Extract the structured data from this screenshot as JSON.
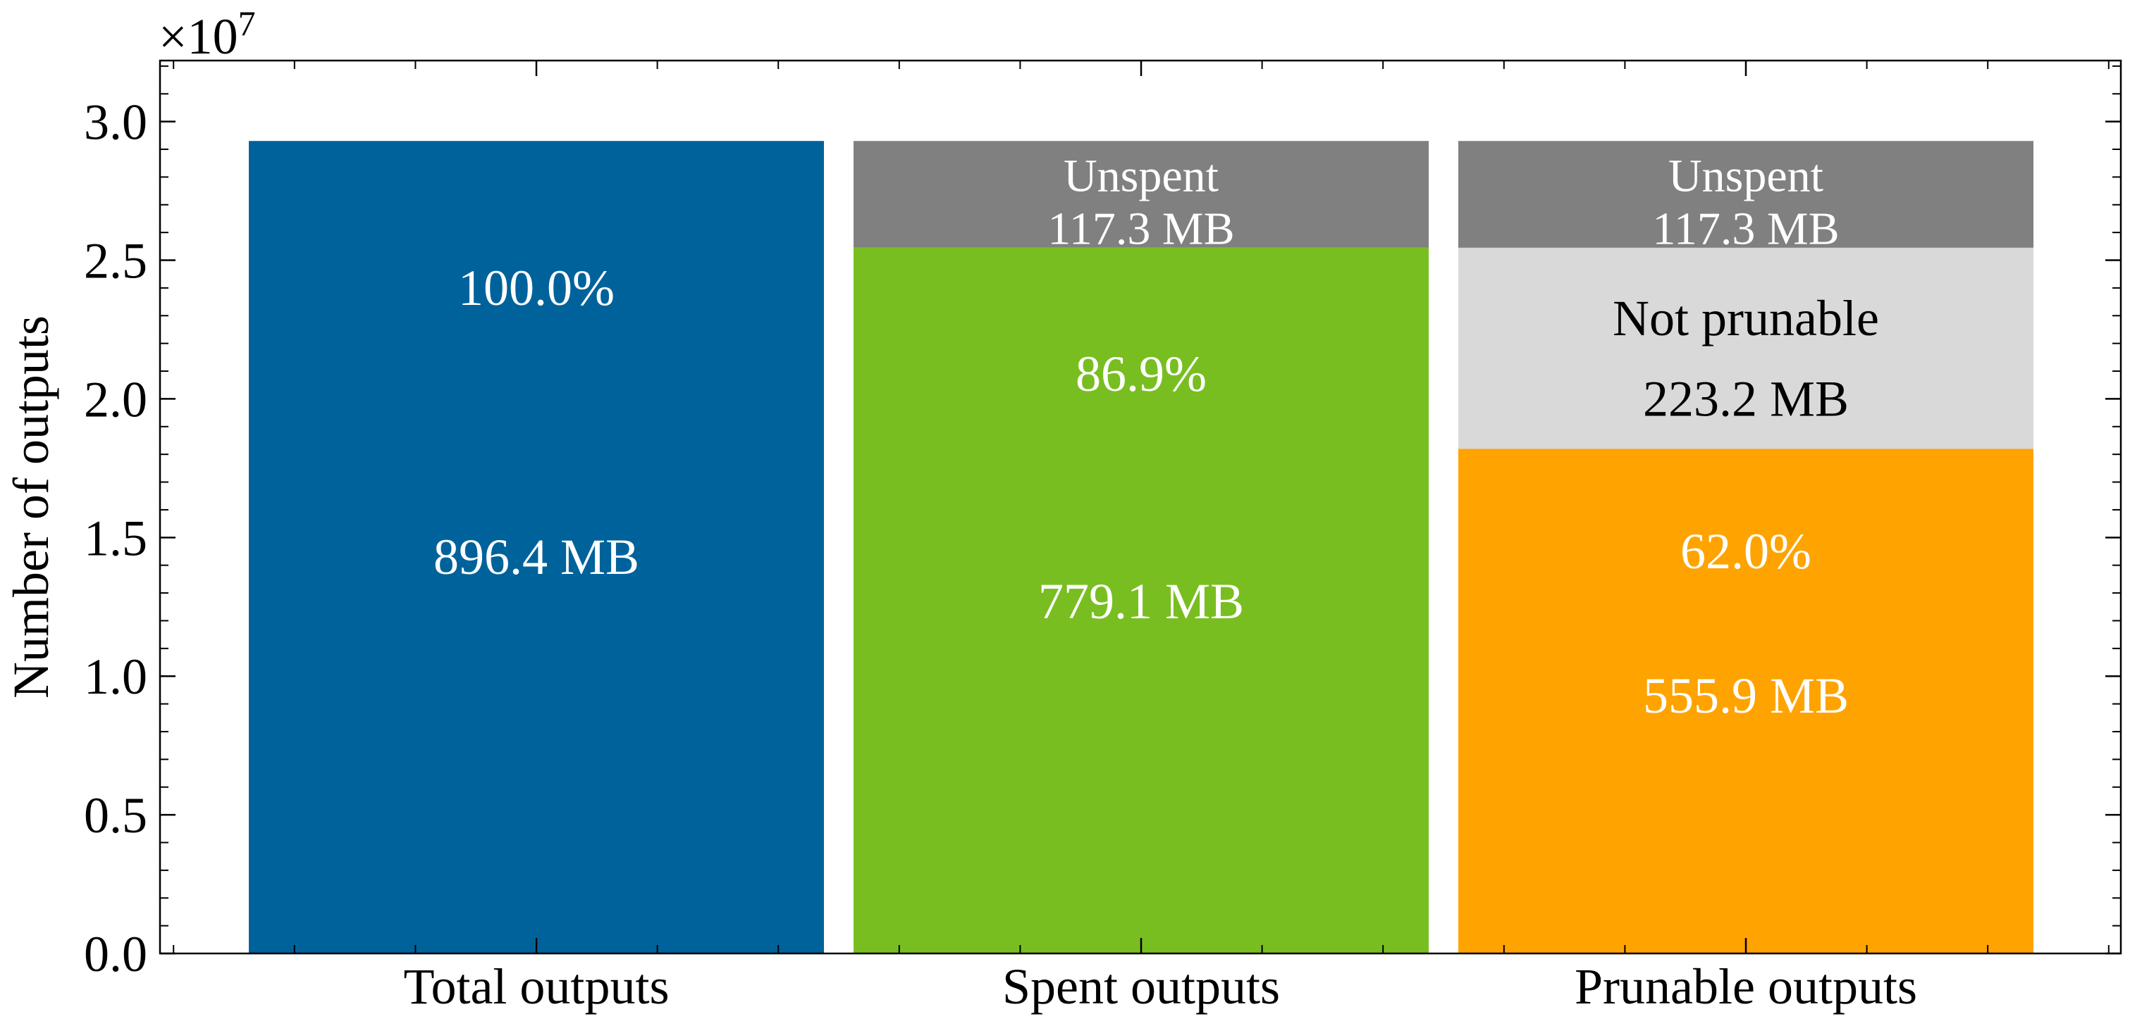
{
  "chart_data": {
    "type": "bar",
    "stacked": true,
    "ylabel": "Number of outputs",
    "y_multiplier_label": "×10",
    "y_multiplier_exponent": "7",
    "ylim": [
      0,
      3.22
    ],
    "yticks": [
      "0.0",
      "0.5",
      "1.0",
      "1.5",
      "2.0",
      "2.5",
      "3.0"
    ],
    "ytick_values": [
      0.0,
      0.5,
      1.0,
      1.5,
      2.0,
      2.5,
      3.0
    ],
    "grid": false,
    "bars": [
      {
        "category": "Total outputs",
        "segments": [
          {
            "name": "",
            "value": 2.93,
            "color": "#00629b",
            "text_color": "#ffffff",
            "labels": [
              "100.0%",
              "896.4 MB"
            ],
            "label_y": [
              2.4,
              1.43
            ]
          }
        ]
      },
      {
        "category": "Spent outputs",
        "segments": [
          {
            "name": "",
            "value": 2.545,
            "color": "#78be20",
            "text_color": "#ffffff",
            "labels": [
              "86.9%",
              "779.1 MB"
            ],
            "label_y": [
              2.09,
              1.27
            ]
          },
          {
            "name": "Unspent",
            "value": 0.385,
            "color": "#808080",
            "text_color": "#ffffff",
            "labels": [
              "Unspent",
              "117.3 MB"
            ],
            "label_y": [
              2.81,
              2.62
            ],
            "small": true
          }
        ]
      },
      {
        "category": "Prunable outputs",
        "segments": [
          {
            "name": "",
            "value": 1.82,
            "color": "#ffa300",
            "text_color": "#ffffff",
            "labels": [
              "62.0%",
              "555.9 MB"
            ],
            "label_y": [
              1.45,
              0.93
            ]
          },
          {
            "name": "Not prunable",
            "value": 0.725,
            "color": "#d9d9d9",
            "text_color": "#000000",
            "labels": [
              "Not prunable",
              "223.2 MB"
            ],
            "label_y": [
              2.29,
              2.0
            ]
          },
          {
            "name": "Unspent",
            "value": 0.385,
            "color": "#808080",
            "text_color": "#ffffff",
            "labels": [
              "Unspent",
              "117.3 MB"
            ],
            "label_y": [
              2.81,
              2.62
            ],
            "small": true
          }
        ]
      }
    ]
  }
}
